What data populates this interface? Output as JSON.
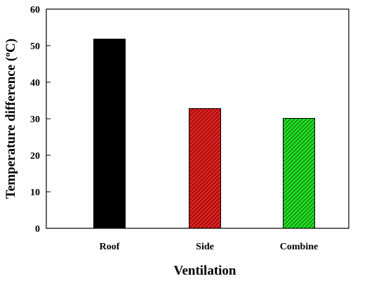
{
  "chart_data": {
    "type": "bar",
    "title": "",
    "xlabel": "Ventilation",
    "ylabel_main": "Temperature difference (",
    "ylabel_sup": "o",
    "ylabel_end": "C)",
    "categories": [
      "Roof",
      "Side",
      "Combine"
    ],
    "values": [
      51.8,
      32.8,
      30.1
    ],
    "colors": [
      "#000000",
      "#e02020",
      "#22dd22"
    ],
    "hatched": [
      false,
      true,
      true
    ],
    "ylim": [
      0,
      60
    ],
    "yticks": [
      "0",
      "10",
      "20",
      "30",
      "40",
      "50",
      "60"
    ],
    "grid": false,
    "legend": "none"
  }
}
